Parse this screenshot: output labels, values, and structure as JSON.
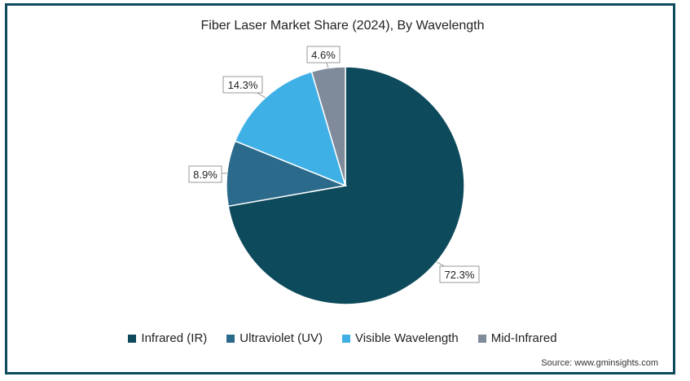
{
  "chart_data": {
    "type": "pie",
    "title": "Fiber Laser Market Share (2024), By Wavelength",
    "source": "Source: www.gminsights.com",
    "legend_position": "bottom",
    "slices": [
      {
        "name": "Infrared (IR)",
        "value": 72.3,
        "label": "72.3%",
        "color": "#0d4a5c"
      },
      {
        "name": "Ultraviolet (UV)",
        "value": 8.9,
        "label": "8.9%",
        "color": "#2b6a8b"
      },
      {
        "name": "Visible Wavelength",
        "value": 14.3,
        "label": "14.3%",
        "color": "#3fb0e6"
      },
      {
        "name": "Mid-Infrared",
        "value": 4.6,
        "label": "4.6%",
        "color": "#7f8b9a"
      }
    ]
  }
}
